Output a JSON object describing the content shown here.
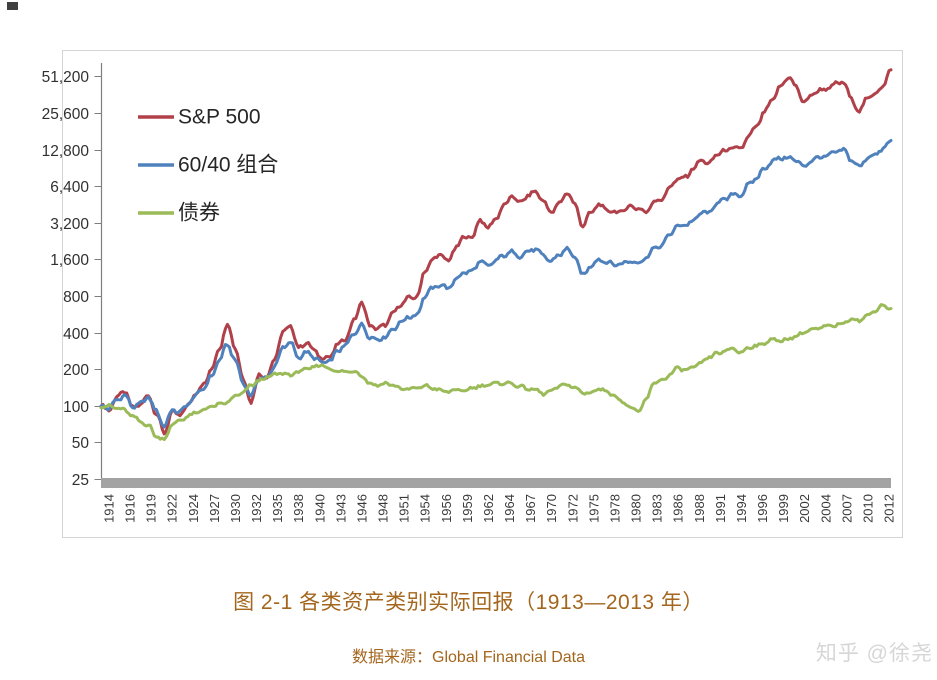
{
  "caption": {
    "title": "图 2-1 各类资产类别实际回报（1913—2013 年）",
    "source_label": "数据来源：",
    "source_value": "Global Financial Data",
    "color": "#a4661d"
  },
  "watermark": {
    "text": "知乎 @徐尧",
    "color": "#d6d6d6"
  },
  "legend": [
    {
      "label": "S&P 500",
      "color": "#b04049"
    },
    {
      "label": "60/40 组合",
      "color": "#4f81bd"
    },
    {
      "label": "债券",
      "color": "#9bbb59"
    }
  ],
  "chart_data": {
    "type": "line",
    "title": "",
    "xlabel": "",
    "ylabel": "",
    "grid": false,
    "legend_position": "upper-left-inside",
    "y_axis": {
      "scale": "log2",
      "min": 25,
      "max": 51200,
      "ticks": [
        25,
        50,
        100,
        200,
        400,
        800,
        1600,
        3200,
        6400,
        12800,
        25600,
        51200
      ],
      "labels": [
        "25",
        "50",
        "100",
        "200",
        "400",
        "800",
        "1,600",
        "3,200",
        "6,400",
        "12,800",
        "25,600",
        "51,200"
      ]
    },
    "x_axis": {
      "first_year": 1913,
      "last_year": 2013,
      "tick_labels": [
        "1914",
        "1916",
        "1919",
        "1922",
        "1924",
        "1927",
        "1930",
        "1932",
        "1935",
        "1938",
        "1940",
        "1943",
        "1946",
        "1948",
        "1951",
        "1954",
        "1956",
        "1959",
        "1962",
        "1964",
        "1967",
        "1970",
        "1972",
        "1975",
        "1978",
        "1980",
        "1983",
        "1986",
        "1988",
        "1991",
        "1994",
        "1996",
        "1999",
        "2002",
        "2004",
        "2007",
        "2010",
        "2012"
      ]
    },
    "x": [
      1913,
      1914,
      1915,
      1916,
      1917,
      1918,
      1919,
      1920,
      1921,
      1922,
      1923,
      1924,
      1925,
      1926,
      1927,
      1928,
      1929,
      1930,
      1931,
      1932,
      1933,
      1934,
      1935,
      1936,
      1937,
      1938,
      1939,
      1940,
      1941,
      1942,
      1943,
      1944,
      1945,
      1946,
      1947,
      1948,
      1949,
      1950,
      1951,
      1952,
      1953,
      1954,
      1955,
      1956,
      1957,
      1958,
      1959,
      1960,
      1961,
      1962,
      1963,
      1964,
      1965,
      1966,
      1967,
      1968,
      1969,
      1970,
      1971,
      1972,
      1973,
      1974,
      1975,
      1976,
      1977,
      1978,
      1979,
      1980,
      1981,
      1982,
      1983,
      1984,
      1985,
      1986,
      1987,
      1988,
      1989,
      1990,
      1991,
      1992,
      1993,
      1994,
      1995,
      1996,
      1997,
      1998,
      1999,
      2000,
      2001,
      2002,
      2003,
      2004,
      2005,
      2006,
      2007,
      2008,
      2009,
      2010,
      2011,
      2012,
      2013
    ],
    "series": [
      {
        "name": "S&P 500",
        "color": "#b04049",
        "values": [
          100,
          92,
          118,
          132,
          96,
          103,
          122,
          86,
          60,
          88,
          84,
          100,
          128,
          150,
          200,
          300,
          470,
          300,
          165,
          108,
          180,
          172,
          245,
          400,
          455,
          300,
          330,
          285,
          245,
          255,
          320,
          360,
          500,
          710,
          460,
          430,
          465,
          580,
          690,
          770,
          790,
          1280,
          1600,
          1750,
          1550,
          2050,
          2450,
          2450,
          3400,
          2900,
          3500,
          4400,
          5300,
          4700,
          5300,
          5800,
          4800,
          3900,
          4600,
          5700,
          4500,
          3000,
          3900,
          4500,
          4100,
          3900,
          4000,
          4400,
          4200,
          3900,
          4800,
          5000,
          6300,
          7300,
          7600,
          9000,
          10500,
          9800,
          11800,
          12500,
          13200,
          13100,
          16500,
          20000,
          26000,
          33000,
          42000,
          51000,
          42000,
          31000,
          36500,
          39500,
          40500,
          44500,
          46000,
          33000,
          26500,
          34000,
          37000,
          43000,
          58000
        ]
      },
      {
        "name": "60/40 组合",
        "color": "#4f81bd",
        "values": [
          100,
          95,
          112,
          122,
          98,
          104,
          118,
          90,
          68,
          92,
          89,
          103,
          122,
          140,
          175,
          240,
          320,
          235,
          155,
          120,
          170,
          168,
          215,
          300,
          330,
          250,
          275,
          250,
          225,
          235,
          285,
          315,
          395,
          460,
          370,
          350,
          370,
          430,
          490,
          540,
          560,
          800,
          930,
          990,
          920,
          1120,
          1250,
          1280,
          1550,
          1400,
          1580,
          1720,
          1850,
          1700,
          1850,
          1950,
          1700,
          1550,
          1750,
          1950,
          1650,
          1180,
          1420,
          1600,
          1520,
          1450,
          1480,
          1550,
          1500,
          1650,
          1980,
          2080,
          2600,
          3000,
          3100,
          3300,
          3900,
          3850,
          4700,
          5000,
          5500,
          5400,
          6600,
          7500,
          9000,
          10300,
          10900,
          11000,
          10400,
          9300,
          10500,
          11100,
          11400,
          12300,
          12700,
          10500,
          9200,
          11000,
          11700,
          12900,
          15200
        ]
      },
      {
        "name": "债券",
        "color": "#9bbb59",
        "values": [
          100,
          99,
          96,
          92,
          82,
          74,
          69,
          56,
          53,
          70,
          76,
          82,
          87,
          93,
          99,
          102,
          107,
          120,
          128,
          148,
          160,
          172,
          180,
          186,
          178,
          192,
          200,
          208,
          218,
          200,
          192,
          190,
          193,
          178,
          152,
          148,
          153,
          148,
          138,
          137,
          140,
          146,
          140,
          133,
          131,
          136,
          131,
          142,
          144,
          150,
          152,
          154,
          152,
          144,
          138,
          135,
          126,
          132,
          145,
          150,
          140,
          128,
          128,
          138,
          132,
          121,
          108,
          97,
          89,
          112,
          155,
          162,
          180,
          205,
          196,
          208,
          225,
          252,
          270,
          280,
          298,
          272,
          305,
          310,
          328,
          355,
          338,
          358,
          372,
          405,
          422,
          436,
          452,
          458,
          482,
          520,
          505,
          548,
          612,
          672,
          630
        ]
      }
    ]
  }
}
